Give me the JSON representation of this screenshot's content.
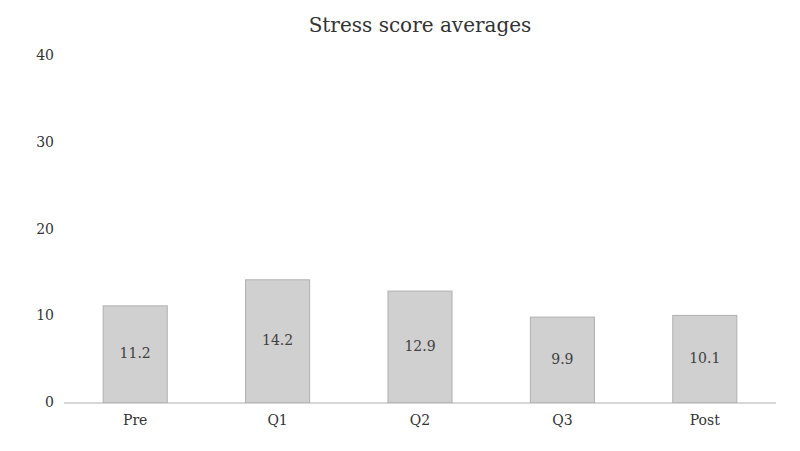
{
  "chart_data": {
    "type": "bar",
    "title": "Stress score averages",
    "categories": [
      "Pre",
      "Q1",
      "Q2",
      "Q3",
      "Post"
    ],
    "values": [
      11.2,
      14.2,
      12.9,
      9.9,
      10.1
    ],
    "color": "#d0d0d0",
    "ylim": [
      0,
      40
    ],
    "yticks": [
      0,
      10,
      20,
      30,
      40
    ],
    "grid": false,
    "data_labels": true
  }
}
